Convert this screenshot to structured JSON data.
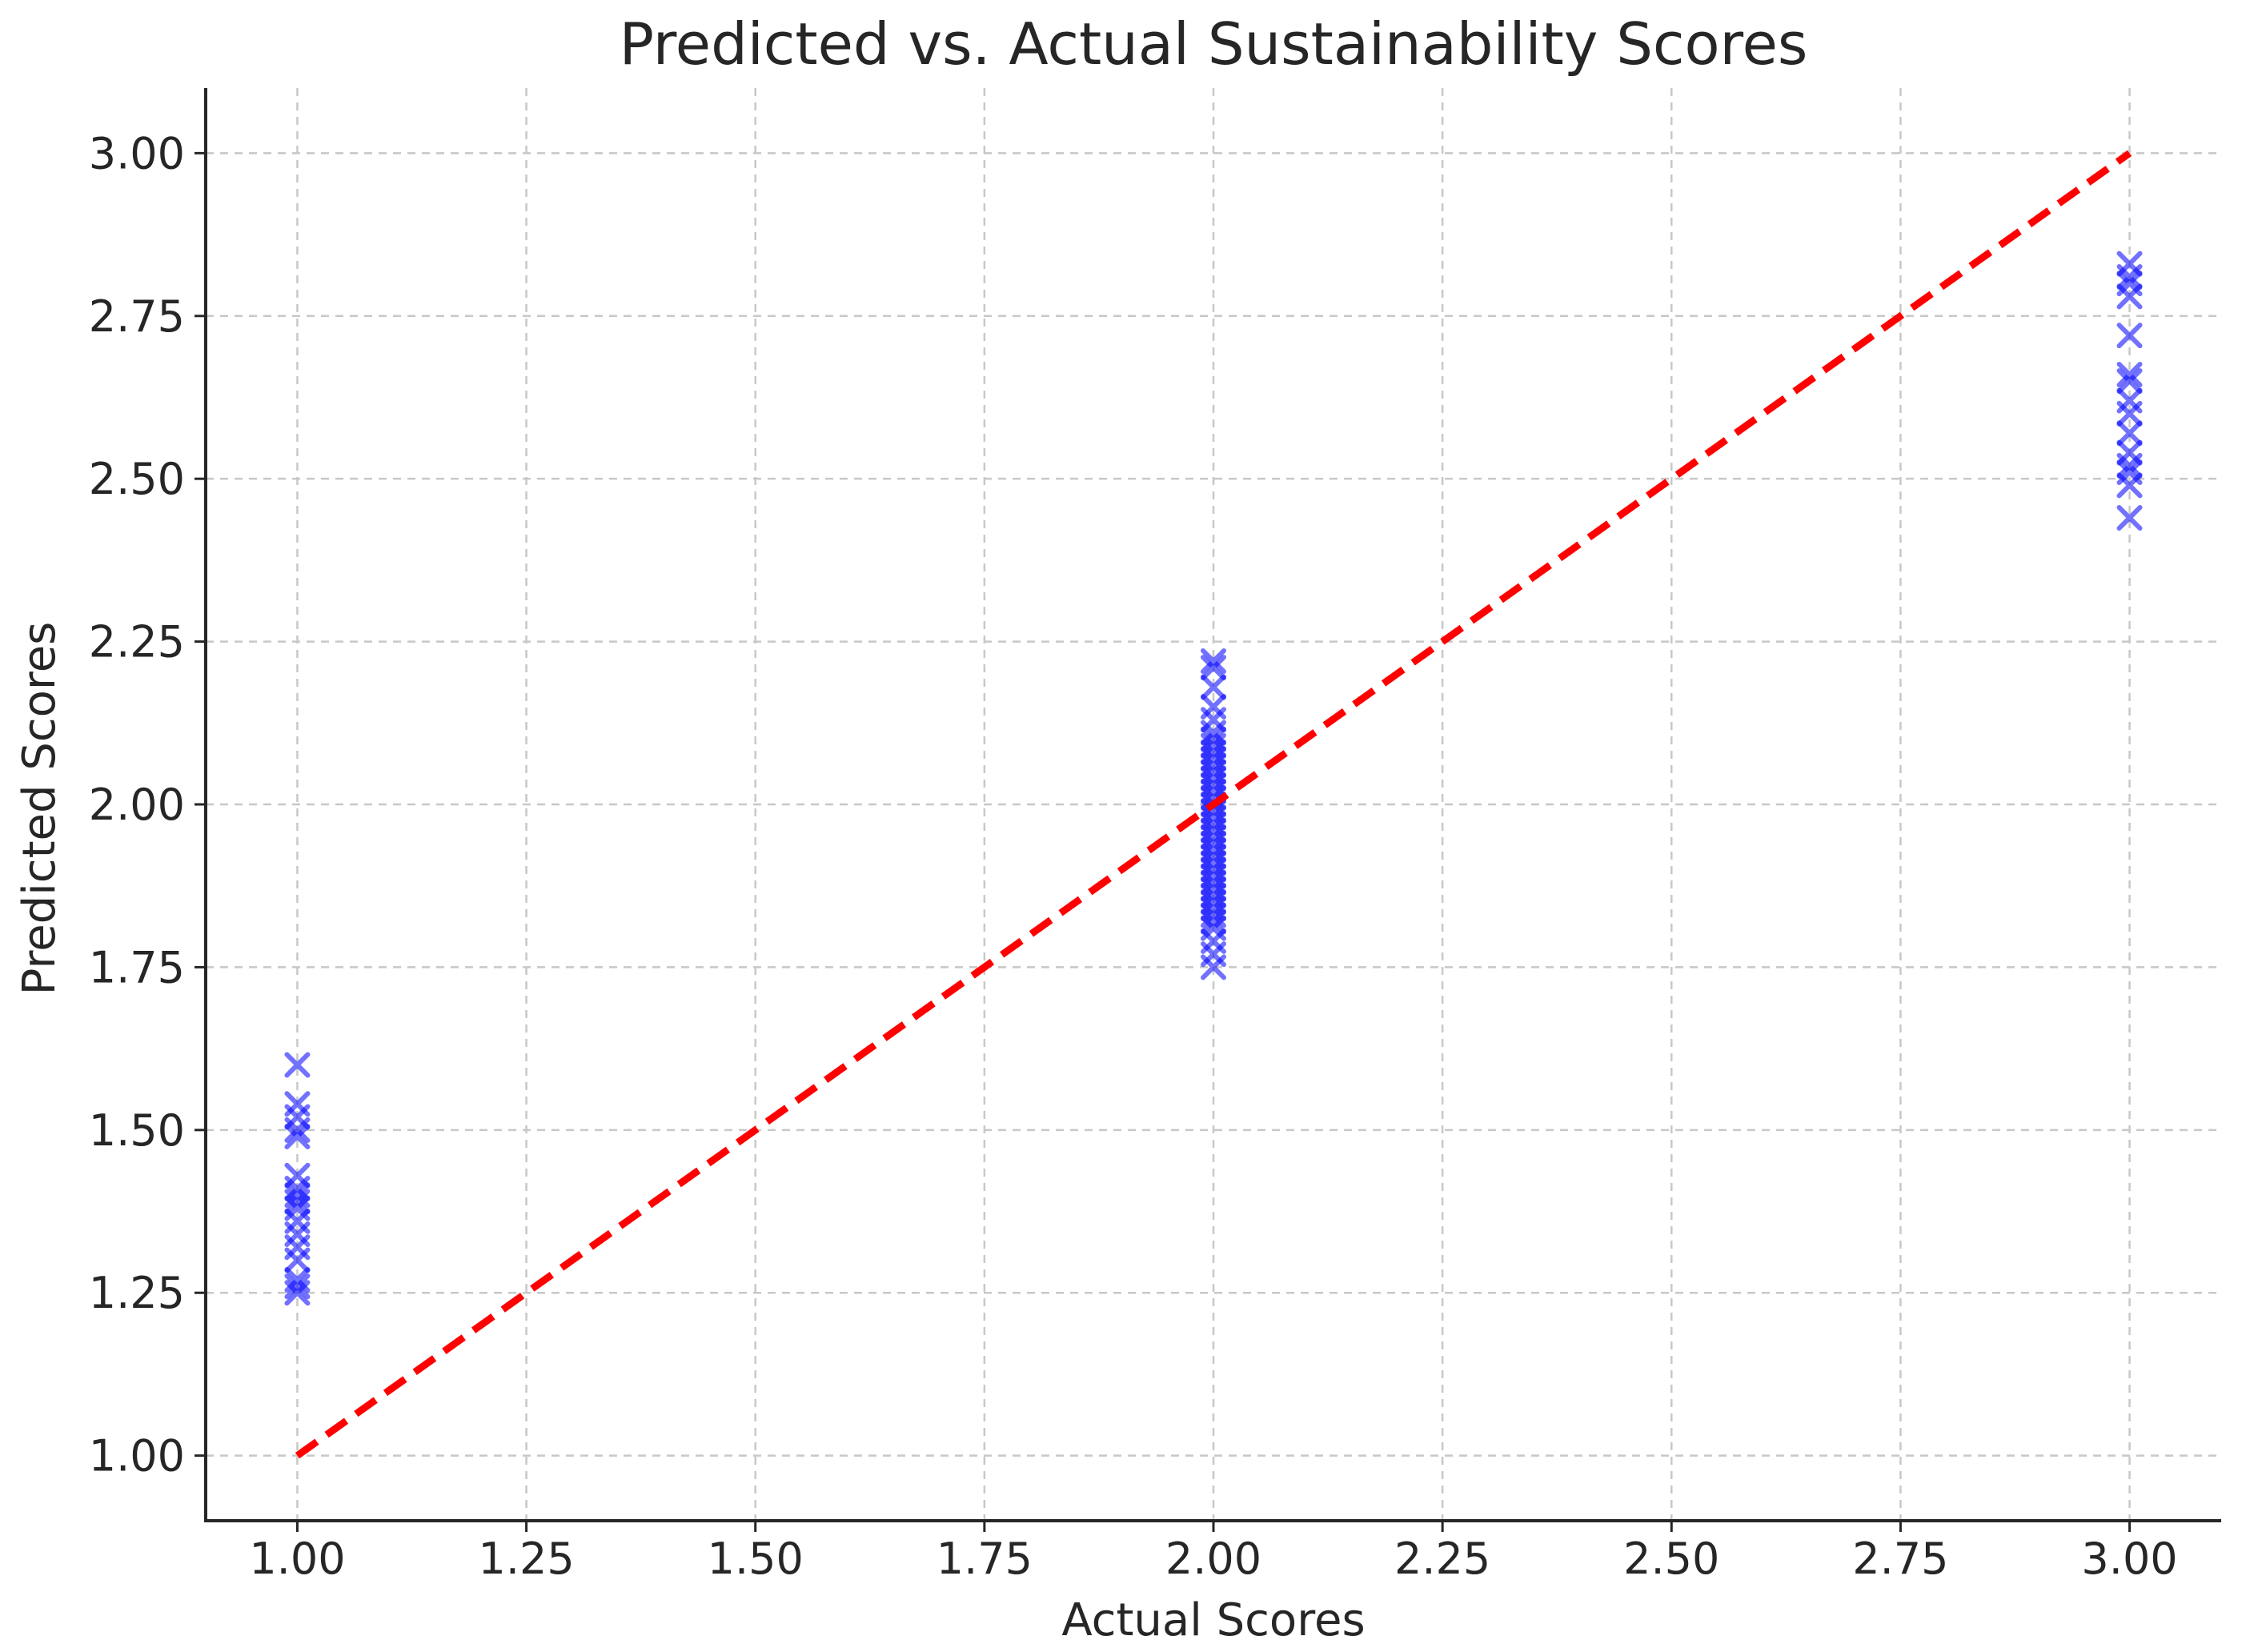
{
  "chart_data": {
    "type": "scatter",
    "title": "Predicted vs. Actual Sustainability Scores",
    "xlabel": "Actual Scores",
    "ylabel": "Predicted Scores",
    "xlim": [
      0.9,
      3.1
    ],
    "ylim": [
      0.9,
      3.1
    ],
    "xticks": [
      1.0,
      1.25,
      1.5,
      1.75,
      2.0,
      2.25,
      2.5,
      2.75,
      3.0
    ],
    "yticks": [
      1.0,
      1.25,
      1.5,
      1.75,
      2.0,
      2.25,
      2.5,
      2.75,
      3.0
    ],
    "tick_labels_x": [
      "1.00",
      "1.25",
      "1.50",
      "1.75",
      "2.00",
      "2.25",
      "2.50",
      "2.75",
      "3.00"
    ],
    "tick_labels_y": [
      "1.00",
      "1.25",
      "1.50",
      "1.75",
      "2.00",
      "2.25",
      "2.50",
      "2.75",
      "3.00"
    ],
    "grid": true,
    "series": [
      {
        "marker": "x",
        "color": "#0000ff",
        "opacity": 0.55,
        "points": [
          [
            1.0,
            1.6
          ],
          [
            1.0,
            1.54
          ],
          [
            1.0,
            1.52
          ],
          [
            1.0,
            1.5
          ],
          [
            1.0,
            1.49
          ],
          [
            1.0,
            1.43
          ],
          [
            1.0,
            1.41
          ],
          [
            1.0,
            1.4
          ],
          [
            1.0,
            1.39
          ],
          [
            1.0,
            1.38
          ],
          [
            1.0,
            1.36
          ],
          [
            1.0,
            1.34
          ],
          [
            1.0,
            1.32
          ],
          [
            1.0,
            1.3
          ],
          [
            1.0,
            1.27
          ],
          [
            1.0,
            1.26
          ],
          [
            1.0,
            1.25
          ],
          [
            2.0,
            2.22
          ],
          [
            2.0,
            2.21
          ],
          [
            2.0,
            2.18
          ],
          [
            2.0,
            2.15
          ],
          [
            2.0,
            2.13
          ],
          [
            2.0,
            2.11
          ],
          [
            2.0,
            2.1
          ],
          [
            2.0,
            2.09
          ],
          [
            2.0,
            2.08
          ],
          [
            2.0,
            2.07
          ],
          [
            2.0,
            2.06
          ],
          [
            2.0,
            2.05
          ],
          [
            2.0,
            2.04
          ],
          [
            2.0,
            2.03
          ],
          [
            2.0,
            2.02
          ],
          [
            2.0,
            2.01
          ],
          [
            2.0,
            2.0
          ],
          [
            2.0,
            1.99
          ],
          [
            2.0,
            1.98
          ],
          [
            2.0,
            1.97
          ],
          [
            2.0,
            1.96
          ],
          [
            2.0,
            1.95
          ],
          [
            2.0,
            1.94
          ],
          [
            2.0,
            1.93
          ],
          [
            2.0,
            1.92
          ],
          [
            2.0,
            1.91
          ],
          [
            2.0,
            1.9
          ],
          [
            2.0,
            1.89
          ],
          [
            2.0,
            1.88
          ],
          [
            2.0,
            1.87
          ],
          [
            2.0,
            1.86
          ],
          [
            2.0,
            1.85
          ],
          [
            2.0,
            1.84
          ],
          [
            2.0,
            1.83
          ],
          [
            2.0,
            1.82
          ],
          [
            2.0,
            1.81
          ],
          [
            2.0,
            1.79
          ],
          [
            2.0,
            1.77
          ],
          [
            2.0,
            1.75
          ],
          [
            3.0,
            2.83
          ],
          [
            3.0,
            2.81
          ],
          [
            3.0,
            2.8
          ],
          [
            3.0,
            2.78
          ],
          [
            3.0,
            2.72
          ],
          [
            3.0,
            2.66
          ],
          [
            3.0,
            2.65
          ],
          [
            3.0,
            2.62
          ],
          [
            3.0,
            2.6
          ],
          [
            3.0,
            2.57
          ],
          [
            3.0,
            2.54
          ],
          [
            3.0,
            2.52
          ],
          [
            3.0,
            2.51
          ],
          [
            3.0,
            2.49
          ],
          [
            3.0,
            2.44
          ]
        ]
      }
    ],
    "reference_line": {
      "x": [
        1.0,
        3.0
      ],
      "y": [
        1.0,
        3.0
      ],
      "color": "#ff0000",
      "style": "dashed"
    }
  }
}
